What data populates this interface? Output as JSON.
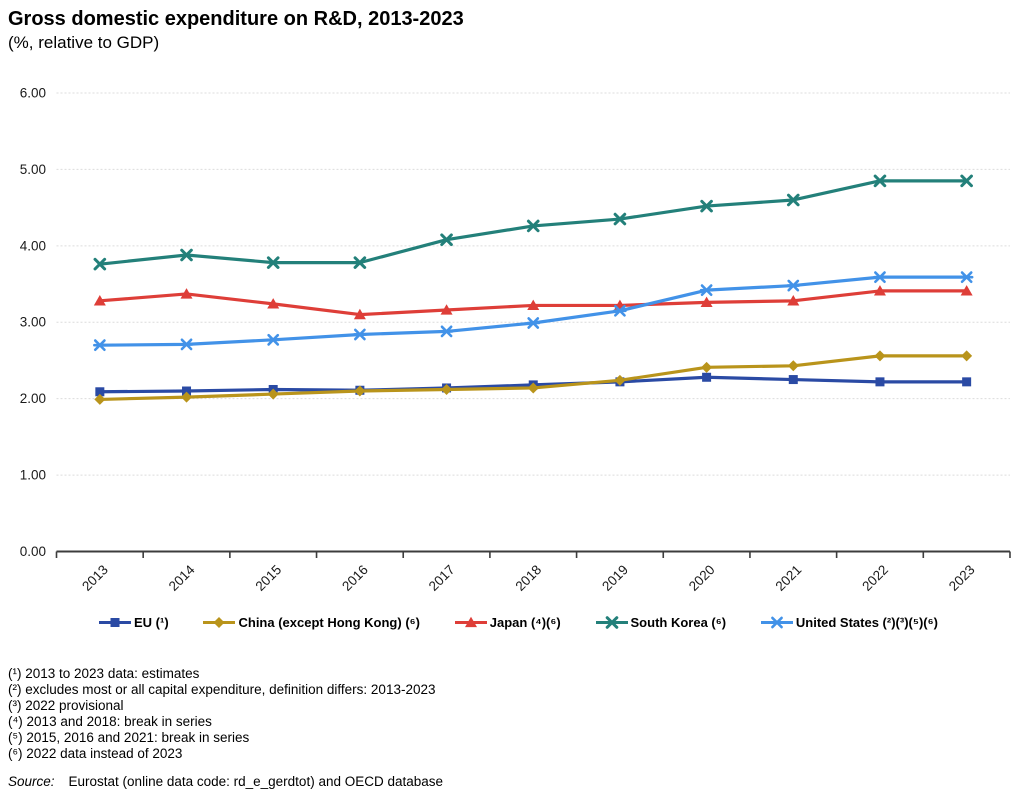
{
  "title": "Gross domestic expenditure on R&D, 2013-2023",
  "subtitle": "(%, relative to GDP)",
  "chart_data": {
    "type": "line",
    "x": [
      "2013",
      "2014",
      "2015",
      "2016",
      "2017",
      "2018",
      "2019",
      "2020",
      "2021",
      "2022",
      "2023"
    ],
    "series": [
      {
        "key": "eu",
        "name": "EU (¹)",
        "color": "#2A4AA4",
        "marker": "square",
        "values": [
          2.09,
          2.1,
          2.12,
          2.11,
          2.14,
          2.18,
          2.22,
          2.28,
          2.25,
          2.22,
          2.22
        ]
      },
      {
        "key": "china",
        "name": "China (except Hong Kong) (⁶)",
        "color": "#B9941B",
        "marker": "diamond",
        "values": [
          1.99,
          2.02,
          2.06,
          2.1,
          2.12,
          2.14,
          2.24,
          2.41,
          2.43,
          2.56,
          2.56
        ]
      },
      {
        "key": "japan",
        "name": "Japan (⁴)(⁶)",
        "color": "#DE3E38",
        "marker": "triangle",
        "values": [
          3.28,
          3.37,
          3.24,
          3.1,
          3.16,
          3.22,
          3.22,
          3.26,
          3.28,
          3.41,
          3.41
        ]
      },
      {
        "key": "south-korea",
        "name": "South Korea (⁶)",
        "color": "#23807A",
        "marker": "x",
        "values": [
          3.76,
          3.88,
          3.78,
          3.78,
          4.08,
          4.26,
          4.35,
          4.52,
          4.6,
          4.85,
          4.85
        ]
      },
      {
        "key": "united-states",
        "name": "United States (²)(³)(⁵)(⁶)",
        "color": "#4292E8",
        "marker": "star",
        "values": [
          2.7,
          2.71,
          2.77,
          2.84,
          2.88,
          2.99,
          3.15,
          3.42,
          3.48,
          3.59,
          3.59
        ]
      }
    ],
    "ylim": [
      0,
      6
    ],
    "ytick_labels": [
      "0.00",
      "1.00",
      "2.00",
      "3.00",
      "4.00",
      "5.00",
      "6.00"
    ],
    "grid": "horizontal-dotted",
    "legend_position": "bottom",
    "colors": {
      "gridline": "#DCDCDC",
      "axis": "#3C3C3C",
      "tick_text": "#1A1A1A"
    }
  },
  "footnotes": [
    "(¹) 2013 to 2023 data: estimates",
    "(²) excludes most or all capital expenditure, definition differs: 2013-2023",
    "(³) 2022 provisional",
    "(⁴) 2013 and 2018: break in series",
    "(⁵) 2015,  2016 and 2021: break in series",
    "(⁶) 2022 data instead of 2023"
  ],
  "source": {
    "label": "Source:",
    "text": "Eurostat (online data code: rd_e_gerdtot) and OECD database"
  }
}
